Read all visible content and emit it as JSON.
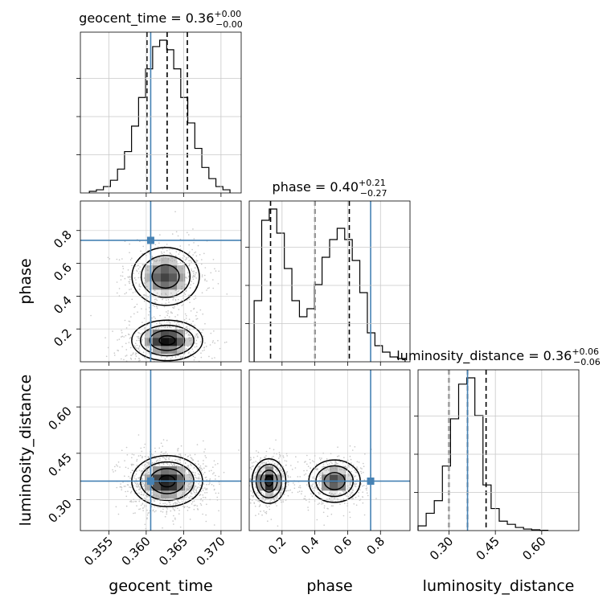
{
  "chart_data": {
    "type": "corner",
    "parameters": [
      "geocent_time",
      "phase",
      "luminosity_distance"
    ],
    "truth_color": "#4682b4",
    "truths": {
      "geocent_time": 0.3606,
      "phase": 0.74,
      "luminosity_distance": 0.36
    },
    "grid": true,
    "titles": [
      {
        "param": "geocent_time",
        "prefix": "geocent_time = 0.36",
        "plus": "+0.00",
        "minus": "−0.00"
      },
      {
        "param": "phase",
        "prefix": "phase = 0.40",
        "plus": "+0.21",
        "minus": "−0.27"
      },
      {
        "param": "luminosity_distance",
        "prefix": "luminosity_distance = 0.36",
        "plus": "+0.06",
        "minus": "−0.06"
      }
    ],
    "axes": {
      "geocent_time": {
        "range": [
          0.3512,
          0.3727
        ],
        "ticks": [
          0.355,
          0.36,
          0.365,
          0.37
        ],
        "tick_labels": [
          "0.355",
          "0.360",
          "0.365",
          "0.370"
        ]
      },
      "phase": {
        "range": [
          0.0,
          0.98
        ],
        "ticks": [
          0.2,
          0.4,
          0.6,
          0.8
        ],
        "tick_labels": [
          "0.2",
          "0.4",
          "0.6",
          "0.8"
        ]
      },
      "luminosity_distance": {
        "range": [
          0.2,
          0.72
        ],
        "ticks": [
          0.3,
          0.45,
          0.6
        ],
        "tick_labels": [
          "0.30",
          "0.45",
          "0.60"
        ]
      }
    },
    "quantiles": {
      "geocent_time": [
        0.3601,
        0.3628,
        0.3655
      ],
      "phase": [
        0.13,
        0.4,
        0.61
      ],
      "luminosity_distance": [
        0.3,
        0.36,
        0.42
      ]
    },
    "histograms": {
      "geocent_time": {
        "edges_range": [
          0.3524,
          0.3712
        ],
        "counts": [
          1,
          2,
          4,
          8,
          15,
          26,
          42,
          60,
          78,
          92,
          96,
          90,
          78,
          60,
          44,
          28,
          16,
          9,
          4,
          2
        ]
      },
      "phase": {
        "edges_range": [
          0.03,
          0.95
        ],
        "counts": [
          38,
          88,
          95,
          80,
          58,
          38,
          28,
          33,
          48,
          65,
          76,
          83,
          76,
          63,
          43,
          18,
          10,
          6,
          3,
          2
        ]
      },
      "luminosity_distance": {
        "edges_range": [
          0.2,
          0.62
        ],
        "counts": [
          3,
          11,
          19,
          41,
          71,
          93,
          97,
          73,
          29,
          14,
          6,
          4,
          2,
          1,
          0.5,
          0.2
        ]
      }
    },
    "joint": [
      {
        "x": "geocent_time",
        "y": "phase",
        "modes": [
          {
            "cx": 0.3628,
            "cy": 0.13,
            "sx": 0.0023,
            "sy": 0.06,
            "w": 0.55
          },
          {
            "cx": 0.3626,
            "cy": 0.52,
            "sx": 0.0023,
            "sy": 0.09,
            "w": 0.45
          }
        ]
      },
      {
        "x": "geocent_time",
        "y": "luminosity_distance",
        "modes": [
          {
            "cx": 0.3628,
            "cy": 0.36,
            "sx": 0.0023,
            "sy": 0.04,
            "w": 1.0
          }
        ]
      },
      {
        "x": "phase",
        "y": "luminosity_distance",
        "modes": [
          {
            "cx": 0.12,
            "cy": 0.36,
            "sx": 0.05,
            "sy": 0.035,
            "w": 0.55
          },
          {
            "cx": 0.52,
            "cy": 0.36,
            "sx": 0.08,
            "sy": 0.035,
            "w": 0.45
          }
        ]
      }
    ],
    "xlabels": [
      "geocent_time",
      "phase",
      "luminosity_distance"
    ],
    "ylabels": [
      "phase",
      "luminosity_distance"
    ]
  }
}
